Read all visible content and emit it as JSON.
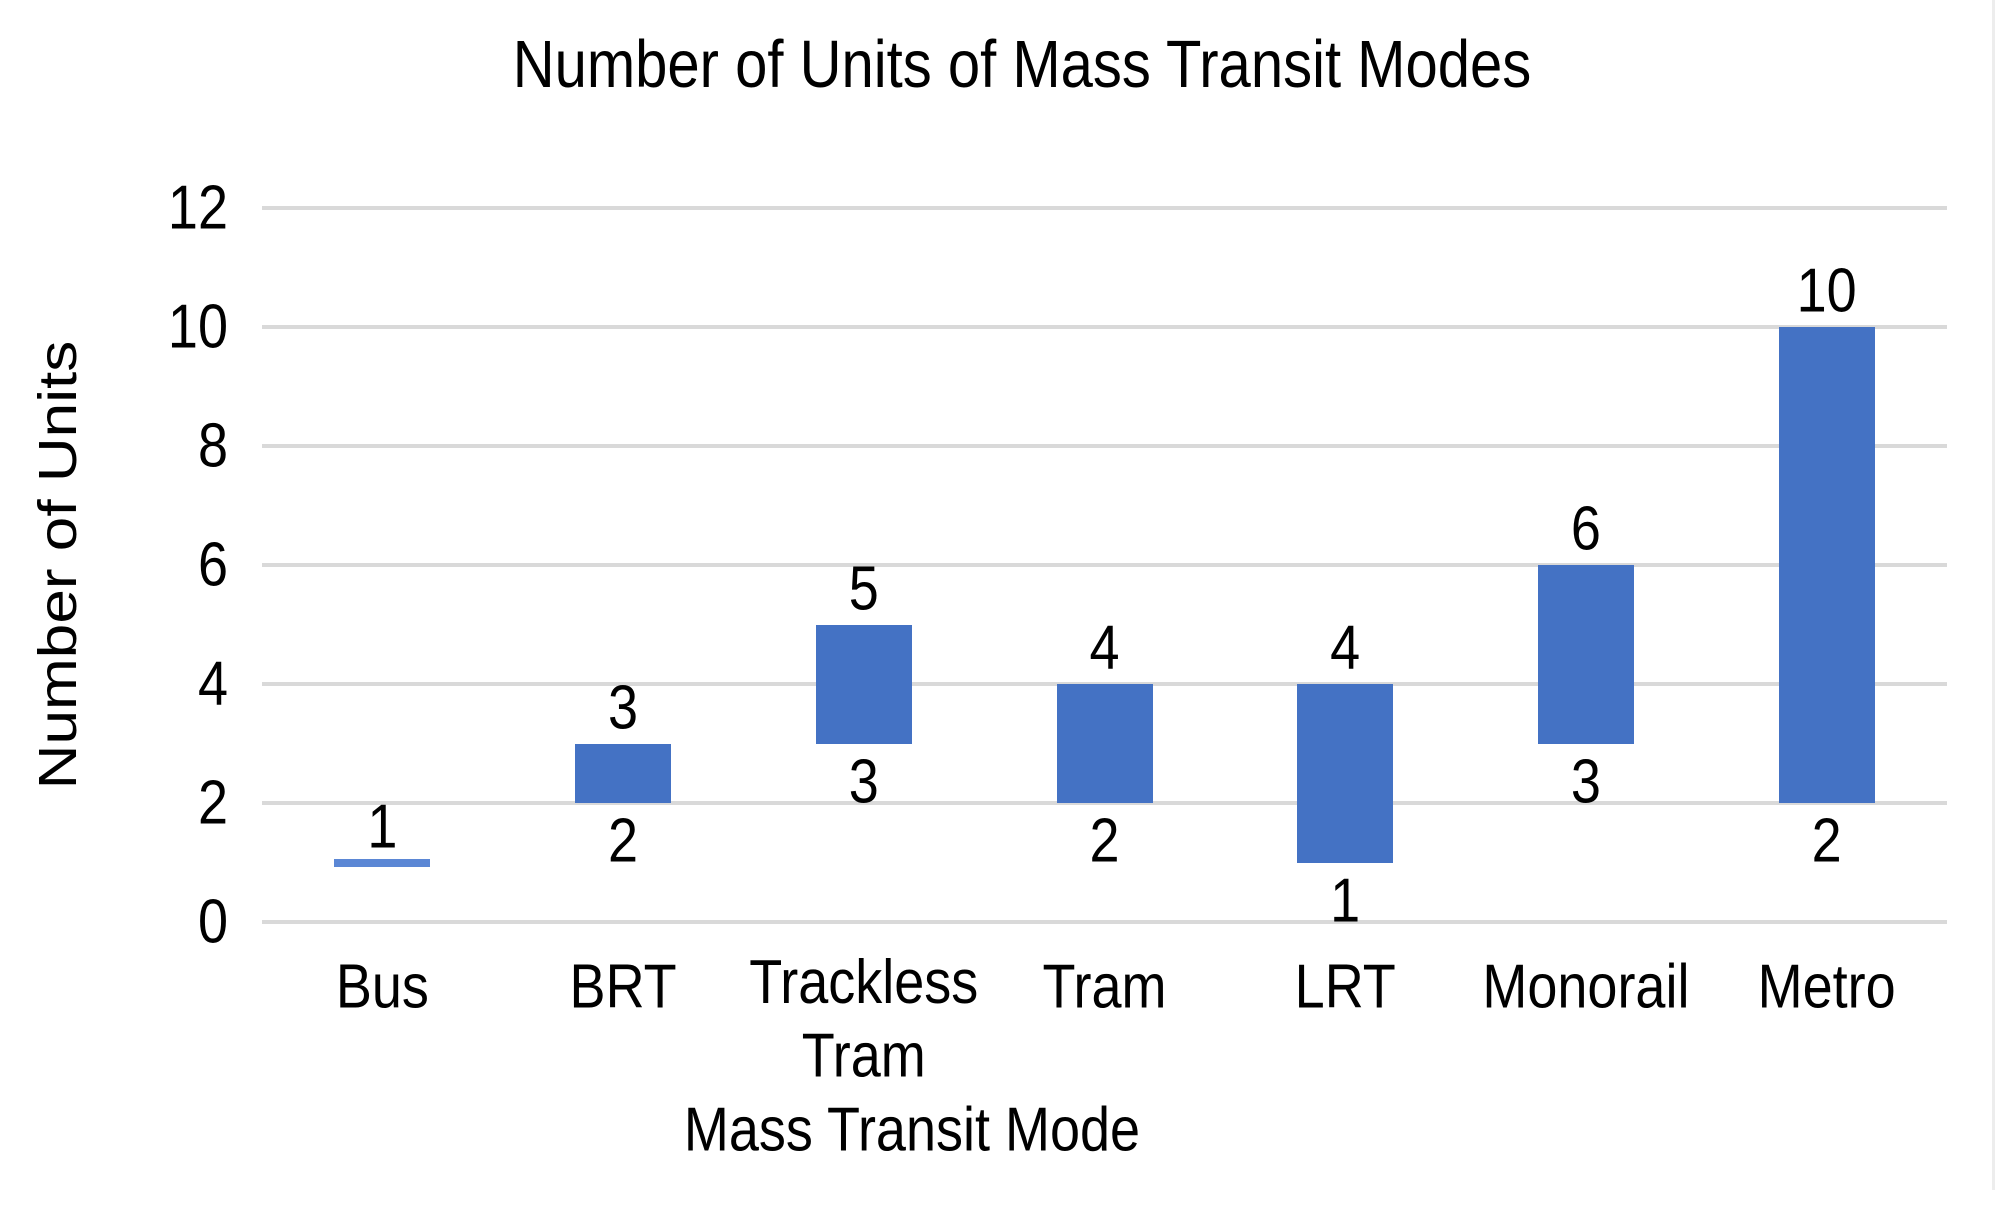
{
  "chart_data": {
    "type": "bar",
    "subtype": "floating-range-bar",
    "title": "Number of Units of Mass Transit Modes",
    "xlabel": "Mass Transit Mode",
    "ylabel": "Number of Units",
    "categories": [
      "Bus",
      "BRT",
      "Trackless\nTram",
      "Tram",
      "LRT",
      "Monorail",
      "Metro"
    ],
    "ranges": [
      [
        1,
        1
      ],
      [
        2,
        3
      ],
      [
        3,
        5
      ],
      [
        2,
        4
      ],
      [
        1,
        4
      ],
      [
        3,
        6
      ],
      [
        2,
        10
      ]
    ],
    "data_labels": {
      "high": [
        "1",
        "3",
        "5",
        "4",
        "4",
        "6",
        "10"
      ],
      "low": [
        null,
        "2",
        "3",
        "2",
        "1",
        "3",
        "2"
      ]
    },
    "y_ticks": [
      0,
      2,
      4,
      6,
      8,
      10,
      12
    ],
    "ylim": [
      0,
      12
    ],
    "grid": "horizontal",
    "legend": "none",
    "colors": {
      "bar": "#4472c4",
      "bus_value_line": "#5b87d5",
      "gridline": "#d9d9d9",
      "text": "#000000",
      "background": "#ffffff"
    }
  }
}
